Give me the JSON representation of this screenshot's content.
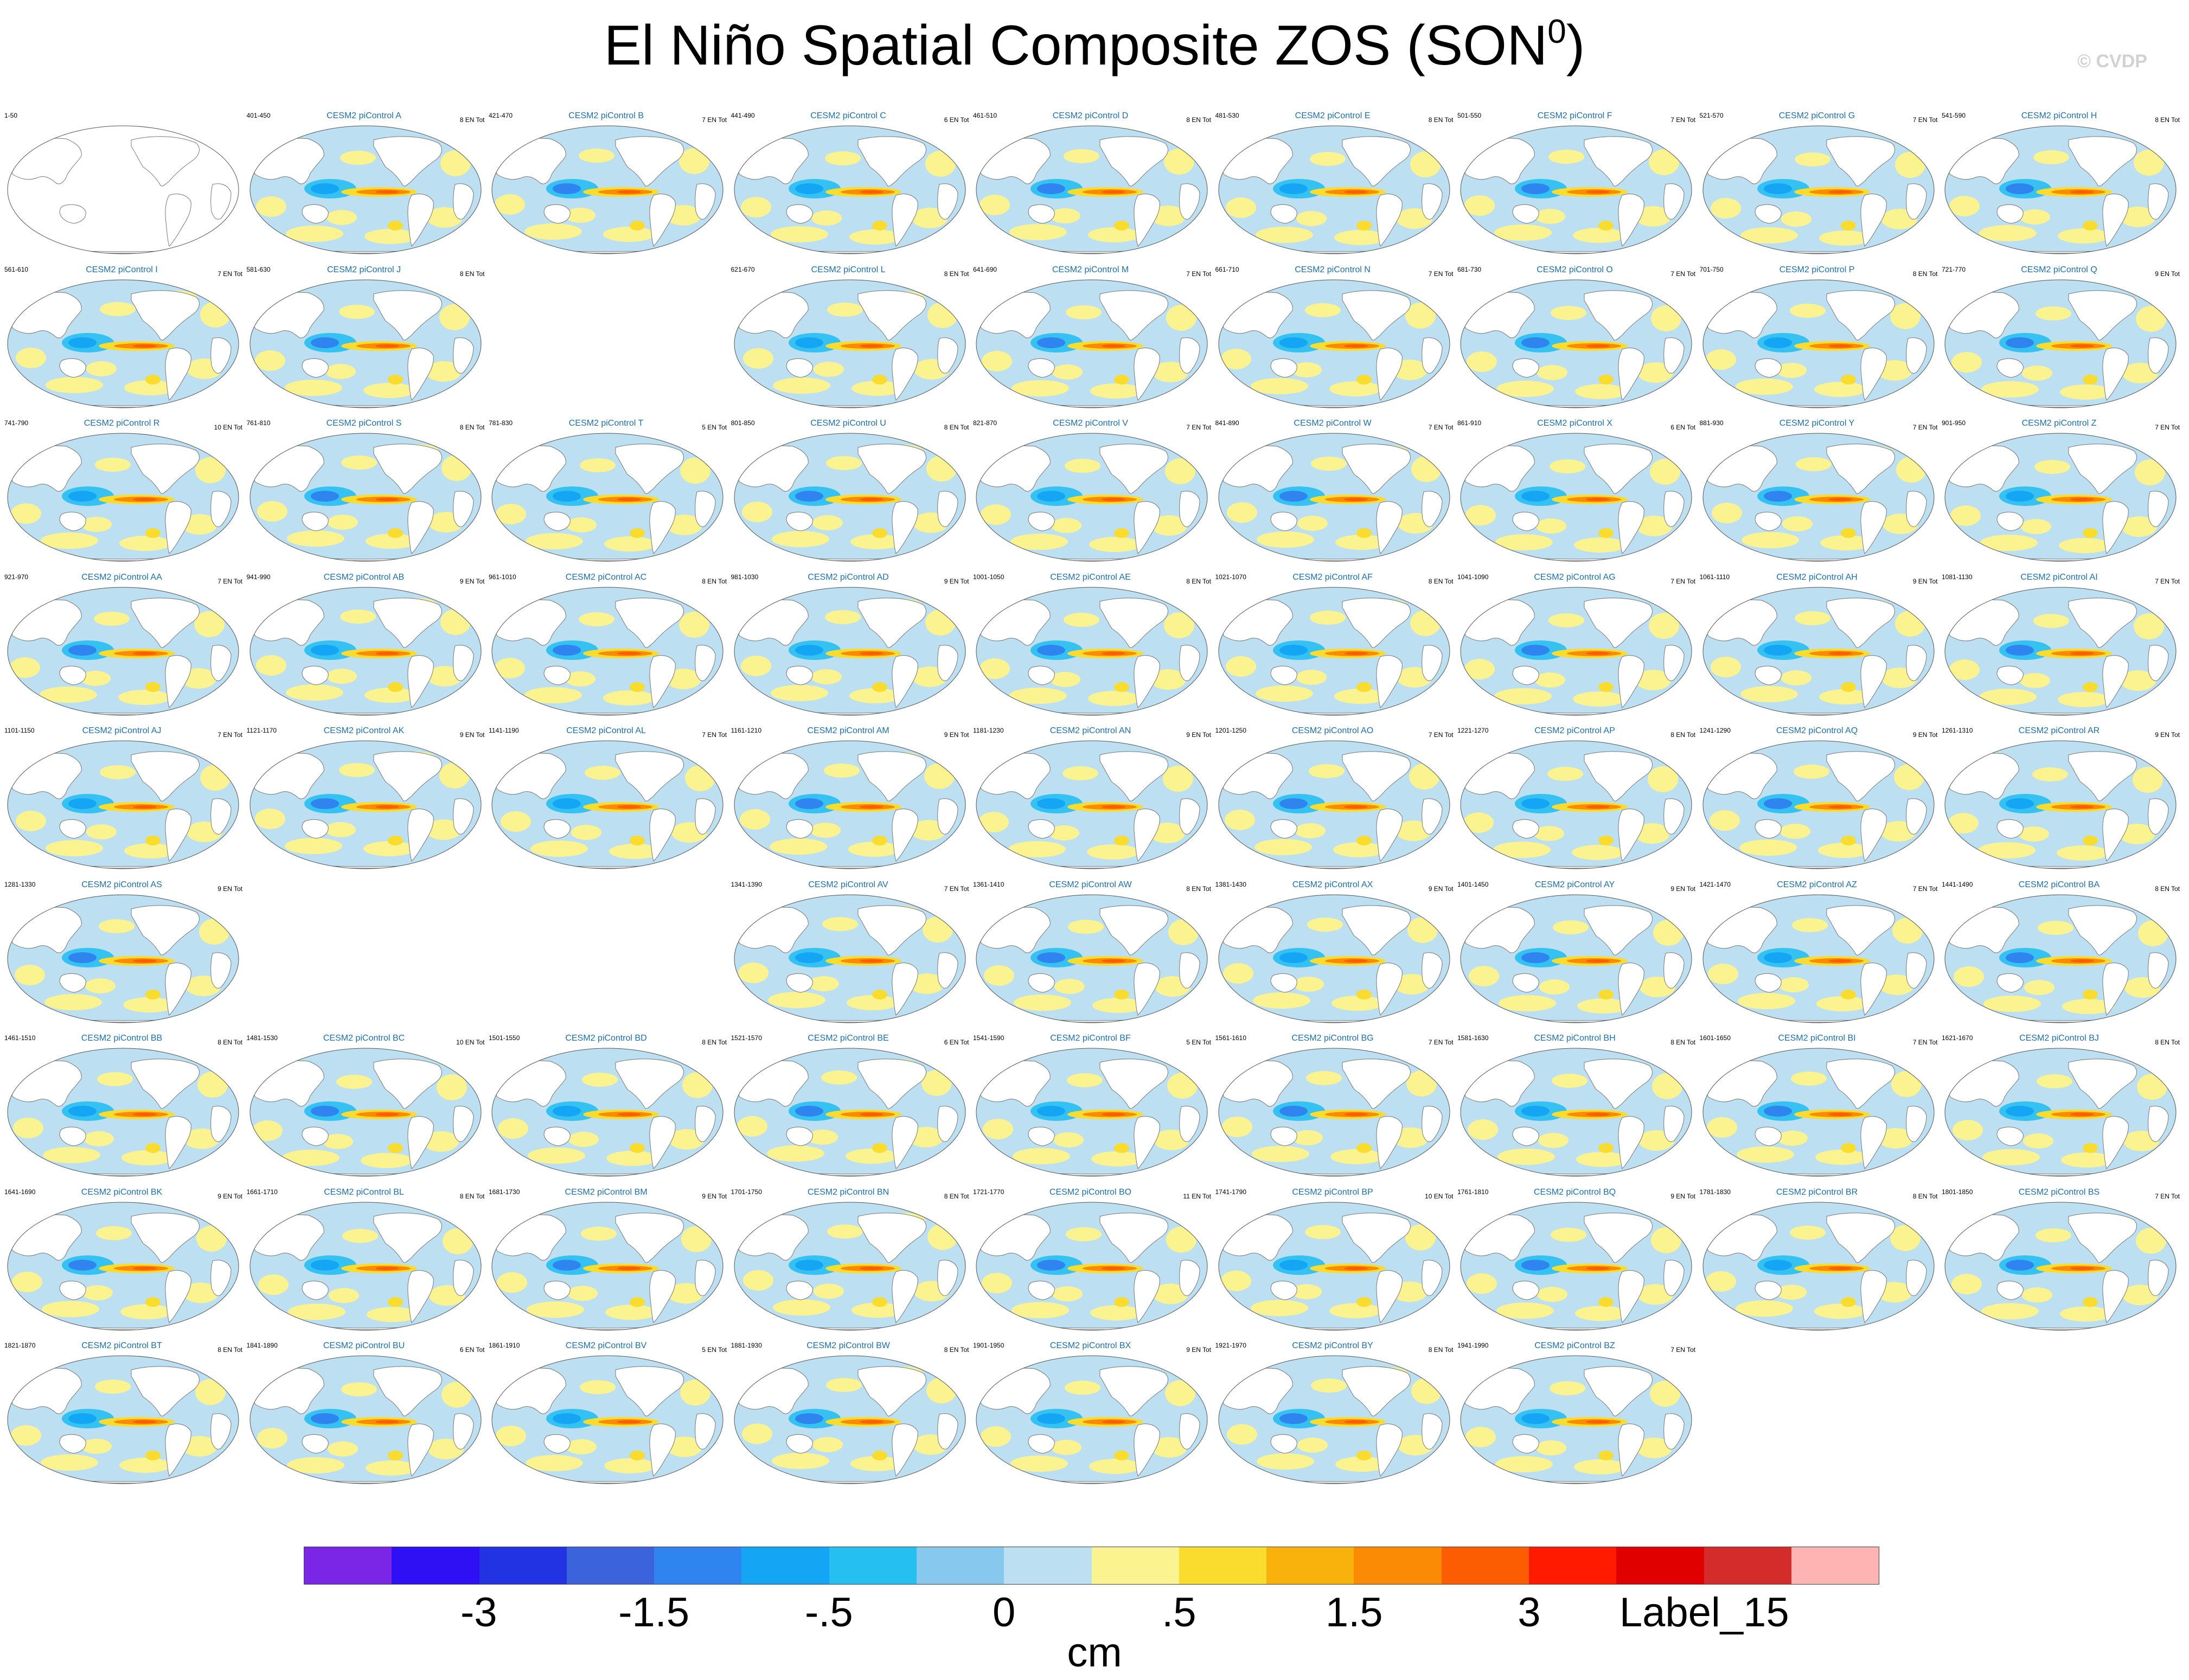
{
  "title": {
    "main": "El Niño Spatial Composite ZOS (SON",
    "superscript": "0",
    "close": ")"
  },
  "watermark": "© CVDP",
  "chart_data": {
    "type": "heatmap",
    "variable": "ZOS",
    "season": "SON",
    "units": "cm",
    "map_projection": "robinson",
    "colorbar": {
      "colors": [
        "#7b26e6",
        "#2f10f5",
        "#2233e4",
        "#3b64dc",
        "#2f84f0",
        "#14a6f5",
        "#26bff2",
        "#87c8ee",
        "#bcdff2",
        "#fbf38f",
        "#f9dc2d",
        "#f9b10c",
        "#fb8a04",
        "#fd5d02",
        "#ff1a00",
        "#e00000",
        "#d42b2b",
        "#ffb4b4"
      ],
      "tick_labels": [
        "-3",
        "-1.5",
        "-.5",
        "0",
        ".5",
        "1.5",
        "3",
        "Label_15"
      ],
      "tick_edges": [
        2,
        4,
        6,
        8,
        10,
        12,
        14,
        16
      ]
    },
    "panels": [
      {
        "title": "",
        "years": "1-50",
        "count": "",
        "row": 0,
        "col": 0,
        "blank": true
      },
      {
        "title": "CESM2 piControl A",
        "years": "401-450",
        "count": "8 EN Tot",
        "row": 0,
        "col": 1
      },
      {
        "title": "CESM2 piControl B",
        "years": "421-470",
        "count": "7 EN Tot",
        "row": 0,
        "col": 2
      },
      {
        "title": "CESM2 piControl C",
        "years": "441-490",
        "count": "6 EN Tot",
        "row": 0,
        "col": 3
      },
      {
        "title": "CESM2 piControl D",
        "years": "461-510",
        "count": "8 EN Tot",
        "row": 0,
        "col": 4
      },
      {
        "title": "CESM2 piControl E",
        "years": "481-530",
        "count": "8 EN Tot",
        "row": 0,
        "col": 5
      },
      {
        "title": "CESM2 piControl F",
        "years": "501-550",
        "count": "7 EN Tot",
        "row": 0,
        "col": 6
      },
      {
        "title": "CESM2 piControl G",
        "years": "521-570",
        "count": "7 EN Tot",
        "row": 0,
        "col": 7
      },
      {
        "title": "CESM2 piControl H",
        "years": "541-590",
        "count": "8 EN Tot",
        "row": 0,
        "col": 8
      },
      {
        "title": "CESM2 piControl I",
        "years": "561-610",
        "count": "7 EN Tot",
        "row": 1,
        "col": 0
      },
      {
        "title": "CESM2 piControl J",
        "years": "581-630",
        "count": "8 EN Tot",
        "row": 1,
        "col": 1
      },
      {
        "title": "CESM2 piControl L",
        "years": "621-670",
        "count": "8 EN Tot",
        "row": 1,
        "col": 3
      },
      {
        "title": "CESM2 piControl M",
        "years": "641-690",
        "count": "7 EN Tot",
        "row": 1,
        "col": 4
      },
      {
        "title": "CESM2 piControl N",
        "years": "661-710",
        "count": "7 EN Tot",
        "row": 1,
        "col": 5
      },
      {
        "title": "CESM2 piControl O",
        "years": "681-730",
        "count": "7 EN Tot",
        "row": 1,
        "col": 6
      },
      {
        "title": "CESM2 piControl P",
        "years": "701-750",
        "count": "8 EN Tot",
        "row": 1,
        "col": 7
      },
      {
        "title": "CESM2 piControl Q",
        "years": "721-770",
        "count": "9 EN Tot",
        "row": 1,
        "col": 8
      },
      {
        "title": "CESM2 piControl R",
        "years": "741-790",
        "count": "10 EN Tot",
        "row": 2,
        "col": 0
      },
      {
        "title": "CESM2 piControl S",
        "years": "761-810",
        "count": "8 EN Tot",
        "row": 2,
        "col": 1
      },
      {
        "title": "CESM2 piControl T",
        "years": "781-830",
        "count": "5 EN Tot",
        "row": 2,
        "col": 2
      },
      {
        "title": "CESM2 piControl U",
        "years": "801-850",
        "count": "8 EN Tot",
        "row": 2,
        "col": 3
      },
      {
        "title": "CESM2 piControl V",
        "years": "821-870",
        "count": "7 EN Tot",
        "row": 2,
        "col": 4
      },
      {
        "title": "CESM2 piControl W",
        "years": "841-890",
        "count": "7 EN Tot",
        "row": 2,
        "col": 5
      },
      {
        "title": "CESM2 piControl X",
        "years": "861-910",
        "count": "6 EN Tot",
        "row": 2,
        "col": 6
      },
      {
        "title": "CESM2 piControl Y",
        "years": "881-930",
        "count": "7 EN Tot",
        "row": 2,
        "col": 7
      },
      {
        "title": "CESM2 piControl Z",
        "years": "901-950",
        "count": "7 EN Tot",
        "row": 2,
        "col": 8
      },
      {
        "title": "CESM2 piControl AA",
        "years": "921-970",
        "count": "7 EN Tot",
        "row": 3,
        "col": 0
      },
      {
        "title": "CESM2 piControl AB",
        "years": "941-990",
        "count": "9 EN Tot",
        "row": 3,
        "col": 1
      },
      {
        "title": "CESM2 piControl AC",
        "years": "961-1010",
        "count": "8 EN Tot",
        "row": 3,
        "col": 2
      },
      {
        "title": "CESM2 piControl AD",
        "years": "981-1030",
        "count": "9 EN Tot",
        "row": 3,
        "col": 3
      },
      {
        "title": "CESM2 piControl AE",
        "years": "1001-1050",
        "count": "8 EN Tot",
        "row": 3,
        "col": 4
      },
      {
        "title": "CESM2 piControl AF",
        "years": "1021-1070",
        "count": "8 EN Tot",
        "row": 3,
        "col": 5
      },
      {
        "title": "CESM2 piControl AG",
        "years": "1041-1090",
        "count": "7 EN Tot",
        "row": 3,
        "col": 6
      },
      {
        "title": "CESM2 piControl AH",
        "years": "1061-1110",
        "count": "9 EN Tot",
        "row": 3,
        "col": 7
      },
      {
        "title": "CESM2 piControl AI",
        "years": "1081-1130",
        "count": "7 EN Tot",
        "row": 3,
        "col": 8
      },
      {
        "title": "CESM2 piControl AJ",
        "years": "1101-1150",
        "count": "7 EN Tot",
        "row": 4,
        "col": 0
      },
      {
        "title": "CESM2 piControl AK",
        "years": "1121-1170",
        "count": "9 EN Tot",
        "row": 4,
        "col": 1
      },
      {
        "title": "CESM2 piControl AL",
        "years": "1141-1190",
        "count": "7 EN Tot",
        "row": 4,
        "col": 2
      },
      {
        "title": "CESM2 piControl AM",
        "years": "1161-1210",
        "count": "9 EN Tot",
        "row": 4,
        "col": 3
      },
      {
        "title": "CESM2 piControl AN",
        "years": "1181-1230",
        "count": "9 EN Tot",
        "row": 4,
        "col": 4
      },
      {
        "title": "CESM2 piControl AO",
        "years": "1201-1250",
        "count": "7 EN Tot",
        "row": 4,
        "col": 5
      },
      {
        "title": "CESM2 piControl AP",
        "years": "1221-1270",
        "count": "8 EN Tot",
        "row": 4,
        "col": 6
      },
      {
        "title": "CESM2 piControl AQ",
        "years": "1241-1290",
        "count": "9 EN Tot",
        "row": 4,
        "col": 7
      },
      {
        "title": "CESM2 piControl AR",
        "years": "1261-1310",
        "count": "9 EN Tot",
        "row": 4,
        "col": 8
      },
      {
        "title": "CESM2 piControl AS",
        "years": "1281-1330",
        "count": "9 EN Tot",
        "row": 5,
        "col": 0
      },
      {
        "title": "CESM2 piControl AV",
        "years": "1341-1390",
        "count": "7 EN Tot",
        "row": 5,
        "col": 3
      },
      {
        "title": "CESM2 piControl AW",
        "years": "1361-1410",
        "count": "8 EN Tot",
        "row": 5,
        "col": 4
      },
      {
        "title": "CESM2 piControl AX",
        "years": "1381-1430",
        "count": "9 EN Tot",
        "row": 5,
        "col": 5
      },
      {
        "title": "CESM2 piControl AY",
        "years": "1401-1450",
        "count": "9 EN Tot",
        "row": 5,
        "col": 6
      },
      {
        "title": "CESM2 piControl AZ",
        "years": "1421-1470",
        "count": "7 EN Tot",
        "row": 5,
        "col": 7
      },
      {
        "title": "CESM2 piControl BA",
        "years": "1441-1490",
        "count": "8 EN Tot",
        "row": 5,
        "col": 8
      },
      {
        "title": "CESM2 piControl BB",
        "years": "1461-1510",
        "count": "8 EN Tot",
        "row": 6,
        "col": 0
      },
      {
        "title": "CESM2 piControl BC",
        "years": "1481-1530",
        "count": "10 EN Tot",
        "row": 6,
        "col": 1
      },
      {
        "title": "CESM2 piControl BD",
        "years": "1501-1550",
        "count": "8 EN Tot",
        "row": 6,
        "col": 2
      },
      {
        "title": "CESM2 piControl BE",
        "years": "1521-1570",
        "count": "6 EN Tot",
        "row": 6,
        "col": 3
      },
      {
        "title": "CESM2 piControl BF",
        "years": "1541-1590",
        "count": "5 EN Tot",
        "row": 6,
        "col": 4
      },
      {
        "title": "CESM2 piControl BG",
        "years": "1561-1610",
        "count": "7 EN Tot",
        "row": 6,
        "col": 5
      },
      {
        "title": "CESM2 piControl BH",
        "years": "1581-1630",
        "count": "8 EN Tot",
        "row": 6,
        "col": 6
      },
      {
        "title": "CESM2 piControl BI",
        "years": "1601-1650",
        "count": "7 EN Tot",
        "row": 6,
        "col": 7
      },
      {
        "title": "CESM2 piControl BJ",
        "years": "1621-1670",
        "count": "8 EN Tot",
        "row": 6,
        "col": 8
      },
      {
        "title": "CESM2 piControl BK",
        "years": "1641-1690",
        "count": "9 EN Tot",
        "row": 7,
        "col": 0
      },
      {
        "title": "CESM2 piControl BL",
        "years": "1661-1710",
        "count": "8 EN Tot",
        "row": 7,
        "col": 1
      },
      {
        "title": "CESM2 piControl BM",
        "years": "1681-1730",
        "count": "9 EN Tot",
        "row": 7,
        "col": 2
      },
      {
        "title": "CESM2 piControl BN",
        "years": "1701-1750",
        "count": "8 EN Tot",
        "row": 7,
        "col": 3
      },
      {
        "title": "CESM2 piControl BO",
        "years": "1721-1770",
        "count": "11 EN Tot",
        "row": 7,
        "col": 4
      },
      {
        "title": "CESM2 piControl BP",
        "years": "1741-1790",
        "count": "10 EN Tot",
        "row": 7,
        "col": 5
      },
      {
        "title": "CESM2 piControl BQ",
        "years": "1761-1810",
        "count": "9 EN Tot",
        "row": 7,
        "col": 6
      },
      {
        "title": "CESM2 piControl BR",
        "years": "1781-1830",
        "count": "8 EN Tot",
        "row": 7,
        "col": 7
      },
      {
        "title": "CESM2 piControl BS",
        "years": "1801-1850",
        "count": "7 EN Tot",
        "row": 7,
        "col": 8
      },
      {
        "title": "CESM2 piControl BT",
        "years": "1821-1870",
        "count": "8 EN Tot",
        "row": 8,
        "col": 0
      },
      {
        "title": "CESM2 piControl BU",
        "years": "1841-1890",
        "count": "6 EN Tot",
        "row": 8,
        "col": 1
      },
      {
        "title": "CESM2 piControl BV",
        "years": "1861-1910",
        "count": "5 EN Tot",
        "row": 8,
        "col": 2
      },
      {
        "title": "CESM2 piControl BW",
        "years": "1881-1930",
        "count": "8 EN Tot",
        "row": 8,
        "col": 3
      },
      {
        "title": "CESM2 piControl BX",
        "years": "1901-1950",
        "count": "9 EN Tot",
        "row": 8,
        "col": 4
      },
      {
        "title": "CESM2 piControl BY",
        "years": "1921-1970",
        "count": "8 EN Tot",
        "row": 8,
        "col": 5
      },
      {
        "title": "CESM2 piControl BZ",
        "years": "1941-1990",
        "count": "7 EN Tot",
        "row": 8,
        "col": 6
      }
    ]
  }
}
